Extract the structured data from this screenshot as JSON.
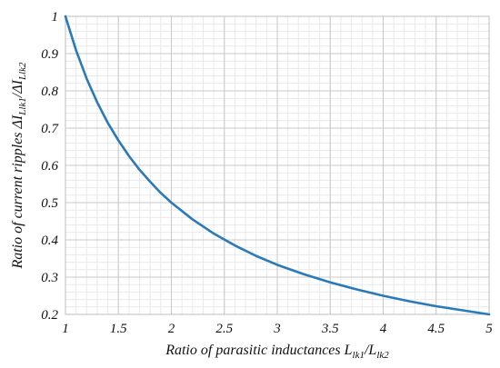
{
  "chart_data": {
    "type": "line",
    "xlabel": {
      "main": "Ratio of parasitic inductances L",
      "sub1": "lk1",
      "mid": "/L",
      "sub2": "lk2"
    },
    "ylabel": {
      "main": "Ratio of current ripples ΔI",
      "sub1": "Llk1",
      "mid": "/ΔI",
      "sub2": "Llk2"
    },
    "xlim": [
      1,
      5
    ],
    "ylim": [
      0.2,
      1
    ],
    "xticks": [
      1,
      1.5,
      2,
      2.5,
      3,
      3.5,
      4,
      4.5,
      5
    ],
    "xtick_labels": [
      "1",
      "1.5",
      "2",
      "2.5",
      "3",
      "3.5",
      "4",
      "4.5",
      "5"
    ],
    "yticks": [
      0.2,
      0.3,
      0.4,
      0.5,
      0.6,
      0.7,
      0.8,
      0.9,
      1
    ],
    "ytick_labels": [
      "0.2",
      "0.3",
      "0.4",
      "0.5",
      "0.6",
      "0.7",
      "0.8",
      "0.9",
      "1"
    ],
    "grid": true,
    "series": [
      {
        "color": "#2a7ab9",
        "x": [
          1,
          1.1,
          1.2,
          1.3,
          1.4,
          1.5,
          1.6,
          1.7,
          1.8,
          1.9,
          2,
          2.2,
          2.4,
          2.6,
          2.8,
          3,
          3.25,
          3.5,
          3.75,
          4,
          4.25,
          4.5,
          4.75,
          5
        ],
        "y": [
          1,
          0.909,
          0.833,
          0.769,
          0.714,
          0.667,
          0.625,
          0.588,
          0.556,
          0.526,
          0.5,
          0.455,
          0.417,
          0.385,
          0.357,
          0.333,
          0.308,
          0.286,
          0.267,
          0.25,
          0.235,
          0.222,
          0.211,
          0.2
        ]
      }
    ]
  }
}
